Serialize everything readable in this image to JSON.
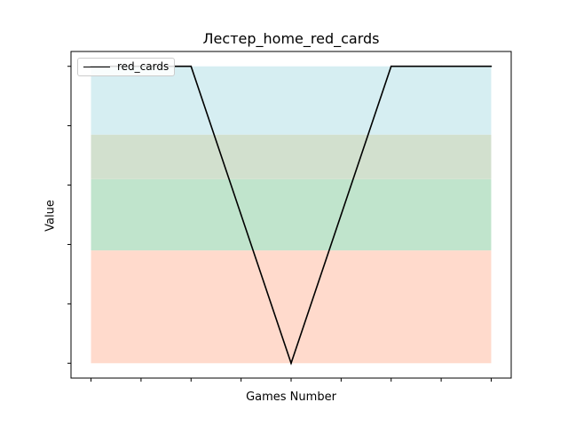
{
  "chart_data": {
    "type": "line",
    "title": "Лестер_home_red_cards",
    "xlabel": "Games Number",
    "ylabel": "Value",
    "x": [
      0,
      1,
      2,
      3,
      4,
      5,
      6,
      7,
      8
    ],
    "series": [
      {
        "name": "red_cards",
        "values": [
          1,
          1,
          1,
          0.5,
          0,
          0.5,
          1,
          1,
          1
        ],
        "color": "#000000"
      }
    ],
    "xlim": [
      -0.4,
      8.4
    ],
    "ylim": [
      -0.05,
      1.05
    ],
    "bands": [
      {
        "from": 0.0,
        "to": 0.38,
        "color": "#ffdacc"
      },
      {
        "from": 0.38,
        "to": 0.62,
        "color": "#c0e4cc"
      },
      {
        "from": 0.62,
        "to": 0.77,
        "color": "#d2e0ce"
      },
      {
        "from": 0.77,
        "to": 1.0,
        "color": "#d6eef2"
      }
    ],
    "yticks": [
      0,
      0.2,
      0.4,
      0.6,
      0.8,
      1.0
    ],
    "tick_labels_visible": false,
    "grid": false,
    "legend": "top-left"
  }
}
